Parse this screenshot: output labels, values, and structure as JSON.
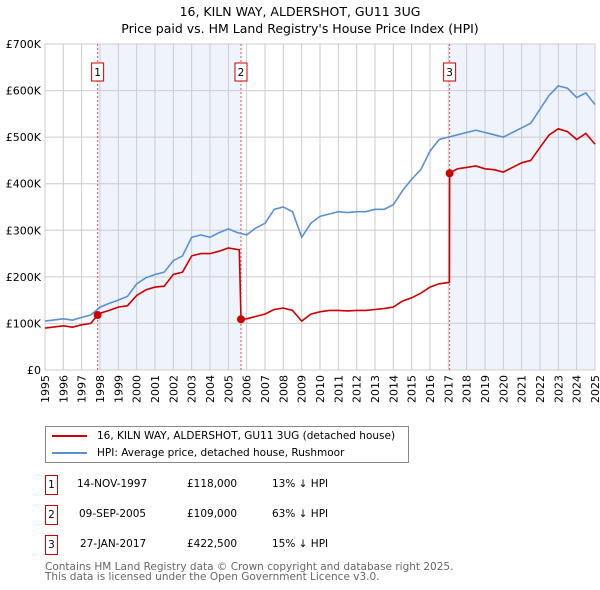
{
  "chart_data": {
    "type": "line",
    "title": "16, KILN WAY, ALDERSHOT, GU11 3UG",
    "subtitle": "Price paid vs. HM Land Registry's House Price Index (HPI)",
    "xlim": [
      1995,
      2025
    ],
    "ylim": [
      0,
      700000
    ],
    "y_ticks": [
      0,
      100000,
      200000,
      300000,
      400000,
      500000,
      600000,
      700000
    ],
    "y_tick_labels": [
      "£0",
      "£100K",
      "£200K",
      "£300K",
      "£400K",
      "£500K",
      "£600K",
      "£700K"
    ],
    "x_ticks": [
      "1995",
      "1996",
      "1997",
      "1998",
      "1999",
      "2000",
      "2001",
      "2002",
      "2003",
      "2004",
      "2005",
      "2006",
      "2007",
      "2008",
      "2009",
      "2010",
      "2011",
      "2012",
      "2013",
      "2014",
      "2015",
      "2016",
      "2017",
      "2018",
      "2019",
      "2020",
      "2021",
      "2022",
      "2023",
      "2024",
      "2025"
    ],
    "grid": true,
    "shaded_ranges": [
      [
        1997.87,
        2005.69
      ],
      [
        2017.07,
        2025
      ]
    ],
    "series": [
      {
        "name": "16, KILN WAY, ALDERSHOT, GU11 3UG (detached house)",
        "color": "#cc0000",
        "x": [
          1995,
          1996,
          1996.5,
          1997,
          1997.5,
          1997.87,
          1998,
          1998.5,
          1999,
          1999.5,
          2000,
          2000.5,
          2001,
          2001.5,
          2002,
          2002.5,
          2003,
          2003.5,
          2004,
          2004.5,
          2005,
          2005.6,
          2005.69,
          2006,
          2006.5,
          2007,
          2007.5,
          2008,
          2008.5,
          2009,
          2009.5,
          2010,
          2010.5,
          2011,
          2011.5,
          2012,
          2012.5,
          2013,
          2013.5,
          2014,
          2014.5,
          2015,
          2015.5,
          2016,
          2016.5,
          2017.06,
          2017.07,
          2017.5,
          2018,
          2018.5,
          2019,
          2019.5,
          2020,
          2020.5,
          2021,
          2021.5,
          2022,
          2022.5,
          2023,
          2023.5,
          2024,
          2024.5,
          2025
        ],
        "y": [
          90000,
          95000,
          92000,
          97000,
          100000,
          118000,
          122000,
          128000,
          135000,
          138000,
          160000,
          172000,
          178000,
          180000,
          205000,
          210000,
          245000,
          250000,
          250000,
          255000,
          262000,
          258000,
          109000,
          110000,
          115000,
          120000,
          130000,
          133000,
          128000,
          105000,
          120000,
          125000,
          128000,
          128000,
          127000,
          128000,
          128000,
          130000,
          132000,
          135000,
          148000,
          155000,
          165000,
          178000,
          185000,
          188000,
          422500,
          432000,
          435000,
          438000,
          432000,
          430000,
          425000,
          435000,
          445000,
          450000,
          478000,
          505000,
          518000,
          512000,
          495000,
          508000,
          485000
        ]
      },
      {
        "name": "HPI: Average price, detached house, Rushmoor",
        "color": "#5b8fd4",
        "x": [
          1995,
          1996,
          1996.5,
          1997,
          1997.5,
          1998,
          1998.5,
          1999,
          1999.5,
          2000,
          2000.5,
          2001,
          2001.5,
          2002,
          2002.5,
          2003,
          2003.5,
          2004,
          2004.5,
          2005,
          2005.5,
          2006,
          2006.5,
          2007,
          2007.5,
          2008,
          2008.5,
          2009,
          2009.5,
          2010,
          2010.5,
          2011,
          2011.5,
          2012,
          2012.5,
          2013,
          2013.5,
          2014,
          2014.5,
          2015,
          2015.5,
          2016,
          2016.5,
          2017,
          2017.5,
          2018,
          2018.5,
          2019,
          2019.5,
          2020,
          2020.5,
          2021,
          2021.5,
          2022,
          2022.5,
          2023,
          2023.5,
          2024,
          2024.5,
          2025
        ],
        "y": [
          105000,
          110000,
          107000,
          113000,
          118000,
          135000,
          143000,
          150000,
          158000,
          185000,
          198000,
          205000,
          210000,
          235000,
          245000,
          285000,
          290000,
          285000,
          295000,
          303000,
          295000,
          290000,
          305000,
          315000,
          345000,
          350000,
          340000,
          285000,
          315000,
          330000,
          335000,
          340000,
          338000,
          340000,
          340000,
          345000,
          345000,
          355000,
          385000,
          410000,
          430000,
          470000,
          495000,
          500000,
          505000,
          510000,
          515000,
          510000,
          505000,
          500000,
          510000,
          520000,
          530000,
          560000,
          590000,
          610000,
          605000,
          585000,
          595000,
          570000
        ]
      }
    ],
    "sales": [
      {
        "label": "1",
        "date": "14-NOV-1997",
        "x": 1997.87,
        "price": "£118,000",
        "value": 118000,
        "hpi": "13% ↓ HPI"
      },
      {
        "label": "2",
        "date": "09-SEP-2005",
        "x": 2005.69,
        "price": "£109,000",
        "value": 109000,
        "hpi": "63% ↓ HPI"
      },
      {
        "label": "3",
        "date": "27-JAN-2017",
        "x": 2017.07,
        "price": "£422,500",
        "value": 422500,
        "hpi": "15% ↓ HPI"
      }
    ],
    "legend_placement": "below"
  },
  "footer": {
    "line1": "Contains HM Land Registry data © Crown copyright and database right 2025.",
    "line2": "This data is licensed under the Open Government Licence v3.0."
  }
}
